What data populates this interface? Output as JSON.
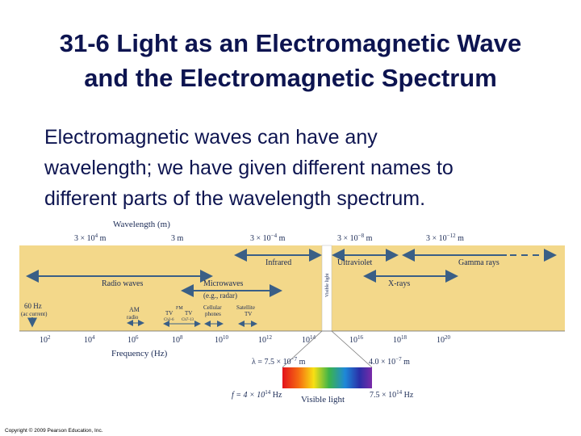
{
  "slide": {
    "title_line1": "31-6 Light as an Electromagnetic Wave",
    "title_line2": "and the Electromagnetic Spectrum",
    "body_line1": "Electromagnetic waves can have any",
    "body_line2": "wavelength; we have given different names to",
    "body_line3": "different parts of the wavelength spectrum.",
    "copyright": "Copyright © 2009 Pearson Education, Inc."
  },
  "figure": {
    "wavelength_axis": {
      "label": "Wavelength (m)",
      "ticks": [
        {
          "base": "3 × 10",
          "exp": "4",
          "unit": " m"
        },
        {
          "base": "3 m",
          "exp": "",
          "unit": ""
        },
        {
          "base": "3 × 10",
          "exp": "−4",
          "unit": " m"
        },
        {
          "base": "3 × 10",
          "exp": "−8",
          "unit": " m"
        },
        {
          "base": "3 × 10",
          "exp": "−12",
          "unit": " m"
        }
      ]
    },
    "frequency_axis": {
      "label": "Frequency (Hz)",
      "ticks": [
        {
          "base": "10",
          "exp": "2"
        },
        {
          "base": "10",
          "exp": "4"
        },
        {
          "base": "10",
          "exp": "6"
        },
        {
          "base": "10",
          "exp": "8"
        },
        {
          "base": "10",
          "exp": "10"
        },
        {
          "base": "10",
          "exp": "12"
        },
        {
          "base": "10",
          "exp": "14"
        },
        {
          "base": "10",
          "exp": "16"
        },
        {
          "base": "10",
          "exp": "18"
        },
        {
          "base": "10",
          "exp": "20"
        }
      ]
    },
    "bands": {
      "infrared": "Infrared",
      "ultraviolet": "Ultraviolet",
      "gamma": "Gamma rays",
      "radio": "Radio waves",
      "microwaves": "Microwaves",
      "microwaves_sub": "(e.g., radar)",
      "xrays": "X-rays",
      "visible_vertical": "Visible light",
      "hz60_line1": "60 Hz",
      "hz60_line2": "(ac current)",
      "am_line1": "AM",
      "am_line2": "radio",
      "fm": "FM",
      "tv1": "TV",
      "tv2": "TV",
      "ch1": "Ch2-6",
      "ch2": "Ch7-13",
      "cellular_line1": "Cellular",
      "cellular_line2": "phones",
      "satellite_line1": "Satellite",
      "satellite_line2": "TV"
    },
    "visible": {
      "lambda_left_prefix": "λ = 7.5 × 10",
      "lambda_left_exp": "−7",
      "lambda_left_unit": " m",
      "lambda_right_prefix": "4.0 × 10",
      "lambda_right_exp": "−7",
      "lambda_right_unit": " m",
      "f_left_prefix": "f = 4 × 10",
      "f_left_exp": "14",
      "f_left_unit": " Hz",
      "f_right_prefix": "7.5 × 10",
      "f_right_exp": "14",
      "f_right_unit": " Hz",
      "label": "Visible light"
    },
    "colors": {
      "band_fill": "#f3d88a",
      "arrow": "#3a5f86",
      "text": "#1a2a55",
      "title": "#0d1450"
    }
  }
}
